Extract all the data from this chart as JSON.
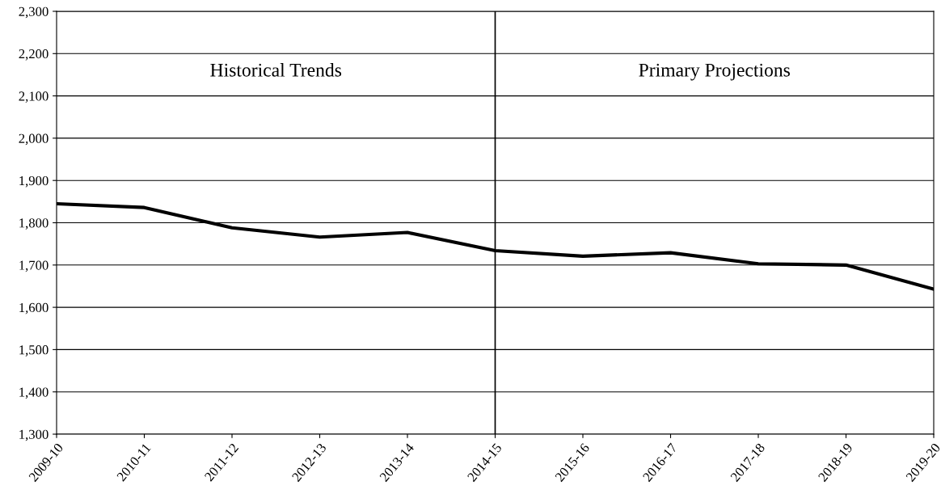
{
  "chart_data": {
    "type": "line",
    "categories": [
      "2009-10",
      "2010-11",
      "2011-12",
      "2012-13",
      "2013-14",
      "2014-15",
      "2015-16",
      "2016-17",
      "2017-18",
      "2018-19",
      "2019-20"
    ],
    "series": [
      {
        "color": "#000000",
        "values": [
          1845,
          1836,
          1788,
          1766,
          1777,
          1734,
          1721,
          1729,
          1703,
          1700,
          1643
        ]
      }
    ],
    "ylim": [
      1300,
      2300
    ],
    "yticks": [
      {
        "value": 1300,
        "label": "1,300"
      },
      {
        "value": 1400,
        "label": "1,400"
      },
      {
        "value": 1500,
        "label": "1,500"
      },
      {
        "value": 1600,
        "label": "1,600"
      },
      {
        "value": 1700,
        "label": "1,700"
      },
      {
        "value": 1800,
        "label": "1,800"
      },
      {
        "value": 1900,
        "label": "1,900"
      },
      {
        "value": 2000,
        "label": "2,000"
      },
      {
        "value": 2100,
        "label": "2,100"
      },
      {
        "value": 2200,
        "label": "2,200"
      },
      {
        "value": 2300,
        "label": "2,300"
      }
    ],
    "grid": "y",
    "ref_lines": [
      {
        "axis": "x",
        "value": "2014-15",
        "color": "#000000"
      }
    ],
    "annotations": [
      "Historical Trends",
      "Primary Projections"
    ]
  }
}
